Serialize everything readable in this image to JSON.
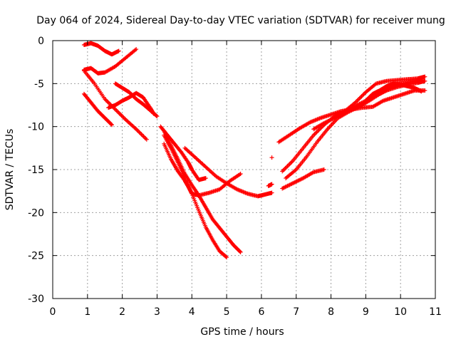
{
  "chart_data": {
    "type": "scatter",
    "title": "Day 064 of 2024, Sidereal Day-to-day VTEC variation (SDTVAR) for receiver mung",
    "xlabel": "GPS time / hours",
    "ylabel": "SDTVAR / TECUs",
    "xlim": [
      0,
      11
    ],
    "ylim": [
      -30,
      0
    ],
    "xticks": [
      0,
      1,
      2,
      3,
      4,
      5,
      6,
      7,
      8,
      9,
      10,
      11
    ],
    "yticks": [
      0,
      -5,
      -10,
      -15,
      -20,
      -25,
      -30
    ],
    "grid": true,
    "marker": "+",
    "color": "#ff0000",
    "series": [
      {
        "x": [
          0.9,
          1.1,
          1.3,
          1.5,
          1.7,
          1.9
        ],
        "y": [
          -0.5,
          -0.3,
          -0.6,
          -1.2,
          -1.6,
          -1.2
        ]
      },
      {
        "x": [
          0.9,
          1.1,
          1.3,
          1.5,
          1.8,
          2.1,
          2.4
        ],
        "y": [
          -3.4,
          -3.2,
          -3.8,
          -3.7,
          -3.0,
          -2.0,
          -1.0
        ]
      },
      {
        "x": [
          0.9,
          1.2,
          1.5,
          1.8,
          2.1,
          2.4,
          2.7
        ],
        "y": [
          -3.5,
          -5.0,
          -6.8,
          -8.0,
          -9.2,
          -10.3,
          -11.5
        ]
      },
      {
        "x": [
          0.9,
          1.1,
          1.3,
          1.5,
          1.7
        ],
        "y": [
          -6.2,
          -7.2,
          -8.2,
          -9.0,
          -9.8
        ]
      },
      {
        "x": [
          1.6,
          1.8,
          2.0,
          2.2,
          2.4,
          2.6,
          2.8,
          2.9
        ],
        "y": [
          -7.8,
          -7.5,
          -7.0,
          -6.6,
          -6.1,
          -6.6,
          -7.8,
          -8.5
        ]
      },
      {
        "x": [
          1.8,
          2.0,
          2.2,
          2.4,
          2.6,
          2.8,
          3.0
        ],
        "y": [
          -5.0,
          -5.5,
          -6.0,
          -6.8,
          -7.4,
          -8.1,
          -8.8
        ]
      },
      {
        "x": [
          3.1,
          3.3,
          3.5,
          3.7,
          3.9,
          4.0,
          4.2,
          4.4
        ],
        "y": [
          -10.0,
          -11.0,
          -12.0,
          -13.0,
          -14.2,
          -15.0,
          -16.2,
          -16.0
        ]
      },
      {
        "x": [
          3.2,
          3.4,
          3.6,
          3.8,
          3.9,
          4.0,
          4.2,
          4.5,
          4.8,
          5.1,
          5.4
        ],
        "y": [
          -12.0,
          -13.8,
          -15.2,
          -16.3,
          -17.0,
          -17.8,
          -18.0,
          -17.7,
          -17.3,
          -16.3,
          -15.5
        ]
      },
      {
        "x": [
          3.2,
          3.4,
          3.6,
          3.8,
          4.0,
          4.2,
          4.4,
          4.6,
          4.8,
          5.0
        ],
        "y": [
          -11.0,
          -12.5,
          -14.2,
          -16.0,
          -17.8,
          -19.8,
          -21.7,
          -23.2,
          -24.5,
          -25.2
        ]
      },
      {
        "x": [
          3.2,
          3.4,
          3.6,
          3.8,
          4.0,
          4.2,
          4.4,
          4.6,
          4.8,
          5.0,
          5.2,
          5.4
        ],
        "y": [
          -10.5,
          -12.2,
          -13.8,
          -15.5,
          -16.8,
          -18.0,
          -19.4,
          -20.8,
          -21.8,
          -22.8,
          -23.8,
          -24.6
        ]
      },
      {
        "x": [
          3.8,
          4.1,
          4.4,
          4.7,
          5.0,
          5.3,
          5.6,
          5.9,
          6.1,
          6.3
        ],
        "y": [
          -12.5,
          -13.6,
          -14.7,
          -15.8,
          -16.6,
          -17.3,
          -17.8,
          -18.1,
          -17.9,
          -17.7
        ]
      },
      {
        "x": [
          6.2,
          6.3
        ],
        "y": [
          -16.9,
          -16.7
        ]
      },
      {
        "x": [
          6.3
        ],
        "y": [
          -13.6
        ]
      },
      {
        "x": [
          6.5,
          6.8,
          7.1,
          7.4,
          7.7,
          8.0,
          8.3,
          8.6,
          8.9,
          9.2,
          9.5,
          9.8,
          10.1,
          10.4,
          10.7
        ],
        "y": [
          -11.8,
          -11.0,
          -10.2,
          -9.5,
          -9.0,
          -8.6,
          -8.2,
          -8.0,
          -7.8,
          -7.7,
          -7.0,
          -6.6,
          -6.2,
          -5.8,
          -5.8
        ]
      },
      {
        "x": [
          6.6,
          6.9,
          7.2,
          7.5,
          7.8,
          8.1,
          8.4,
          8.7,
          9.0,
          9.3,
          9.6,
          9.9,
          10.2,
          10.5,
          10.7
        ],
        "y": [
          -15.2,
          -14.0,
          -12.5,
          -11.0,
          -9.8,
          -8.8,
          -8.2,
          -7.6,
          -7.0,
          -6.4,
          -5.8,
          -5.4,
          -5.1,
          -4.9,
          -4.7
        ]
      },
      {
        "x": [
          6.6,
          6.9,
          7.2,
          7.5,
          7.8
        ],
        "y": [
          -17.2,
          -16.6,
          -16.0,
          -15.3,
          -15.0
        ]
      },
      {
        "x": [
          6.7,
          7.0,
          7.3,
          7.6,
          7.9,
          8.2,
          8.5,
          8.8,
          9.1,
          9.4,
          9.7,
          10.0,
          10.3,
          10.6
        ],
        "y": [
          -16.0,
          -15.0,
          -13.5,
          -11.8,
          -10.3,
          -9.0,
          -8.3,
          -7.7,
          -7.0,
          -6.2,
          -5.5,
          -5.0,
          -4.8,
          -4.6
        ]
      },
      {
        "x": [
          7.5,
          7.8,
          8.1,
          8.4,
          8.7,
          9.0,
          9.3,
          9.6,
          9.9,
          10.2,
          10.5,
          10.7
        ],
        "y": [
          -10.3,
          -9.6,
          -9.0,
          -8.2,
          -7.2,
          -6.0,
          -5.0,
          -4.7,
          -4.6,
          -4.5,
          -4.4,
          -4.2
        ]
      },
      {
        "x": [
          9.0,
          9.2,
          9.4,
          9.6,
          9.8,
          10.0,
          10.2,
          10.4,
          10.6
        ],
        "y": [
          -7.0,
          -6.2,
          -5.8,
          -5.3,
          -5.0,
          -5.1,
          -5.3,
          -5.5,
          -5.9
        ]
      }
    ]
  }
}
